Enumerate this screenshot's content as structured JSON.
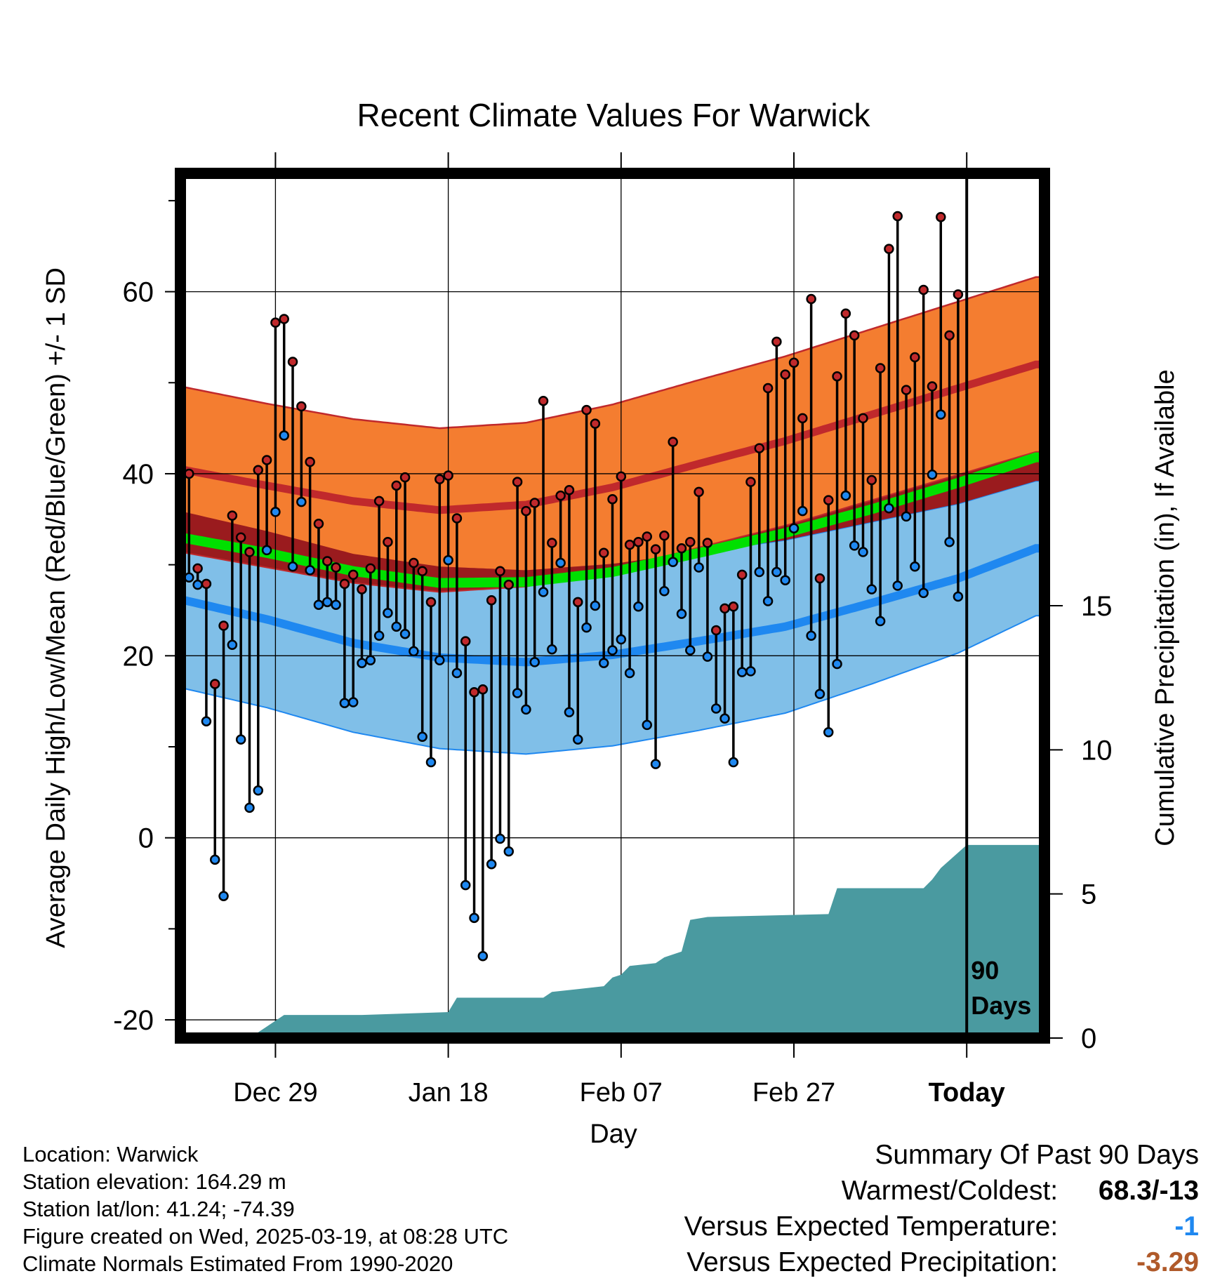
{
  "chart_data": {
    "type": "line",
    "title": "Recent Climate Values For Warwick",
    "xlabel": "Day",
    "ylabel_left": "Average Daily High/Low/Mean (Red/Blue/Green) +/- 1 SD",
    "ylabel_right": "Cumulative Precipitation (in), If Available",
    "x_tick_labels": [
      {
        "day": 11,
        "label": "Dec 29"
      },
      {
        "day": 31,
        "label": "Jan 18"
      },
      {
        "day": 51,
        "label": "Feb 07"
      },
      {
        "day": 71,
        "label": "Feb 27"
      },
      {
        "day": 91,
        "label": "Today"
      }
    ],
    "xlim": [
      0,
      100
    ],
    "ylim": [
      -22,
      73
    ],
    "y_ticks": [
      -20,
      0,
      20,
      40,
      60
    ],
    "precip_ylim": [
      0,
      30
    ],
    "precip_ticks": [
      0,
      5,
      10,
      15
    ],
    "today_day": 91,
    "today_label": "90 Days",
    "colors": {
      "high": "#c0292c",
      "low": "#1f88f0",
      "mean": "#00e000",
      "high_band": "#f47d30",
      "low_band": "#80bfe8",
      "overlap": "#9a1b1e",
      "precip": "#4a9aa0"
    },
    "normals": {
      "days": [
        0,
        10,
        20,
        30,
        40,
        50,
        60,
        70,
        80,
        90,
        99
      ],
      "high_mean": [
        40.5,
        38.7,
        37.0,
        36.0,
        36.6,
        38.5,
        41.1,
        43.6,
        46.5,
        49.4,
        52.0
      ],
      "high_sd": [
        9.1,
        9.0,
        9.0,
        9.0,
        9.0,
        9.1,
        9.2,
        9.3,
        9.4,
        9.5,
        9.6
      ],
      "low_mean": [
        26.2,
        24.0,
        21.4,
        19.8,
        19.3,
        20.1,
        21.6,
        23.2,
        25.8,
        28.5,
        31.8
      ],
      "low_sd": [
        9.7,
        9.7,
        9.8,
        10.0,
        10.1,
        10.0,
        9.8,
        9.5,
        8.9,
        8.2,
        7.4
      ],
      "mean": [
        33.0,
        31.3,
        29.3,
        28.0,
        28.1,
        29.2,
        31.3,
        33.5,
        36.1,
        39.0,
        41.8
      ]
    },
    "series": [
      {
        "name": "High",
        "values": [
          40.0,
          29.6,
          27.9,
          16.9,
          23.3,
          35.4,
          33.0,
          31.4,
          40.4,
          41.5,
          56.6,
          57.0,
          52.3,
          47.4,
          41.3,
          34.5,
          30.4,
          29.7,
          27.9,
          28.9,
          27.3,
          29.6,
          37.0,
          32.5,
          38.7,
          39.6,
          30.2,
          29.3,
          25.9,
          39.4,
          39.8,
          35.1,
          21.6,
          16.0,
          16.3,
          26.1,
          29.3,
          27.8,
          39.1,
          35.9,
          36.8,
          48.0,
          32.4,
          37.6,
          38.2,
          25.9,
          47.0,
          45.5,
          31.3,
          37.2,
          39.7,
          32.2,
          32.5,
          33.1,
          31.7,
          33.2,
          43.5,
          31.8,
          32.5,
          38.0,
          32.4,
          22.8,
          25.2,
          25.4,
          28.9,
          39.1,
          42.8,
          49.4,
          54.5,
          50.9,
          52.2,
          46.1,
          59.2,
          28.5,
          37.1,
          50.7,
          57.6,
          55.2,
          46.1,
          39.3,
          51.6,
          64.7,
          68.3,
          49.2,
          52.8,
          60.2,
          49.6,
          68.2,
          55.2,
          59.7
        ],
        "ranges_days_start": 1
      },
      {
        "name": "Low",
        "values": [
          28.6,
          27.8,
          12.8,
          -2.4,
          -6.4,
          21.2,
          10.8,
          3.3,
          5.2,
          31.6,
          35.8,
          44.2,
          29.8,
          36.9,
          29.4,
          25.6,
          25.9,
          25.6,
          14.8,
          14.9,
          19.2,
          19.5,
          22.2,
          24.7,
          23.2,
          22.4,
          20.5,
          11.1,
          8.3,
          19.5,
          30.5,
          18.1,
          -5.2,
          -8.8,
          -13.0,
          -2.9,
          -0.1,
          -1.5,
          15.9,
          14.1,
          19.3,
          27.0,
          20.7,
          30.2,
          13.8,
          10.8,
          23.1,
          25.5,
          19.2,
          20.6,
          21.8,
          18.1,
          25.4,
          12.4,
          8.1,
          27.1,
          30.3,
          24.6,
          20.6,
          29.7,
          19.9,
          14.2,
          13.1,
          8.3,
          18.2,
          18.3,
          29.2,
          26.0,
          29.2,
          28.3,
          34.0,
          35.9,
          22.2,
          15.8,
          11.6,
          19.1,
          37.6,
          32.1,
          31.4,
          27.3,
          23.8,
          36.2,
          27.7,
          35.3,
          29.8,
          26.9,
          39.9,
          46.5,
          32.5,
          26.5
        ]
      }
    ],
    "precip": {
      "days": [
        0,
        8,
        10,
        12,
        21,
        31,
        32,
        42,
        43,
        46,
        49,
        50,
        51,
        52,
        55,
        56,
        58,
        59,
        61,
        75,
        76,
        86,
        87,
        88,
        91,
        100
      ],
      "values": [
        0,
        0,
        0.4,
        0.8,
        0.8,
        0.9,
        1.4,
        1.4,
        1.6,
        1.7,
        1.8,
        2.1,
        2.2,
        2.5,
        2.6,
        2.8,
        3.0,
        4.1,
        4.2,
        4.3,
        5.2,
        5.2,
        5.5,
        5.9,
        6.7,
        6.7
      ]
    }
  },
  "info": {
    "location": "Location: Warwick",
    "elevation": "Station elevation: 164.29 m",
    "latlon": "Station lat/lon: 41.24; -74.39",
    "created": "Figure created on Wed, 2025-03-19, at 08:28 UTC",
    "normals": "Climate Normals Estimated From 1990-2020"
  },
  "summary": {
    "heading": "Summary Of Past 90 Days",
    "warm_cold_label": "Warmest/Coldest:",
    "warm_cold_value": "68.3/-13",
    "temp_label": "Versus Expected Temperature:",
    "temp_value": "-1",
    "temp_color": "#1f88f0",
    "precip_label": "Versus Expected Precipitation:",
    "precip_value": "-3.29",
    "precip_color": "#b05a2a"
  }
}
